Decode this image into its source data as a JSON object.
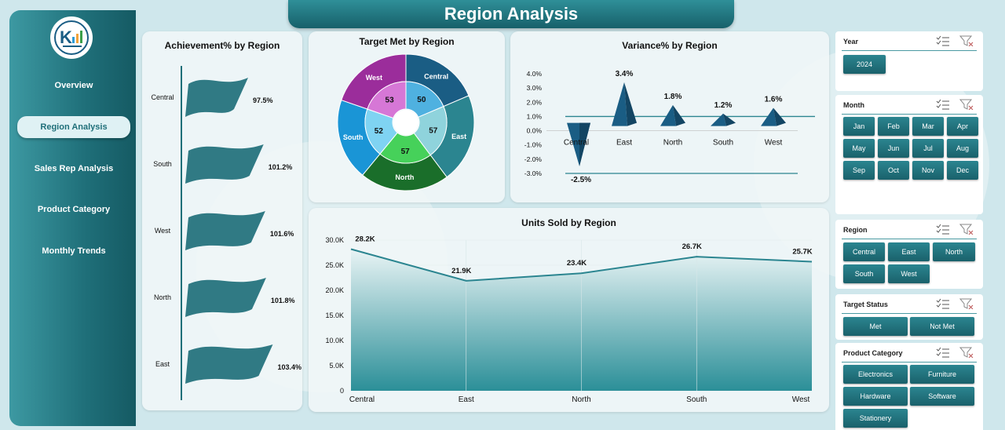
{
  "page_title": "Region Analysis",
  "colors": {
    "teal_dark": "#1f6f79",
    "teal_mid": "#2b8590",
    "purple": "#9b2d9b",
    "blue": "#1a95d6",
    "green": "#1a6e2a",
    "navy": "#1a5d84"
  },
  "sidebar": {
    "logo_icon": "company-logo-icon",
    "items": [
      {
        "label": "Overview"
      },
      {
        "label": "Region Analysis"
      },
      {
        "label": "Sales Rep Analysis"
      },
      {
        "label": "Product Category"
      },
      {
        "label": "Monthly Trends"
      }
    ]
  },
  "achievement": {
    "title": "Achievement% by Region",
    "chart_data": {
      "type": "bar",
      "title": "Achievement% by Region",
      "categories": [
        "Central",
        "South",
        "West",
        "North",
        "East"
      ],
      "values": [
        97.5,
        101.2,
        101.6,
        101.8,
        103.4
      ],
      "labels": [
        "97.5%",
        "101.2%",
        "101.6%",
        "101.8%",
        "103.4%"
      ]
    }
  },
  "target_met": {
    "title": "Target Met by Region",
    "chart_data": {
      "type": "pie",
      "title": "Target Met by Region",
      "categories": [
        "Central",
        "East",
        "North",
        "South",
        "West"
      ],
      "values": [
        50,
        57,
        57,
        52,
        53
      ],
      "labels": [
        "50",
        "57",
        "57",
        "52",
        "53"
      ]
    }
  },
  "variance": {
    "title": "Variance% by Region",
    "chart_data": {
      "type": "bar",
      "title": "Variance% by Region",
      "categories": [
        "Central",
        "East",
        "North",
        "South",
        "West"
      ],
      "values": [
        -2.5,
        3.4,
        1.8,
        1.2,
        1.6
      ],
      "labels": [
        "-2.5%",
        "3.4%",
        "1.8%",
        "1.2%",
        "1.6%"
      ],
      "ylim": [
        -3.0,
        4.0
      ],
      "ticks": [
        "4.0%",
        "3.0%",
        "2.0%",
        "1.0%",
        "0.0%",
        "-1.0%",
        "-2.0%",
        "-3.0%"
      ]
    }
  },
  "units": {
    "title": "Units Sold by Region",
    "chart_data": {
      "type": "area",
      "title": "Units Sold by Region",
      "categories": [
        "Central",
        "East",
        "North",
        "South",
        "West"
      ],
      "values": [
        28.2,
        21.9,
        23.4,
        26.7,
        25.7
      ],
      "labels": [
        "28.2K",
        "21.9K",
        "23.4K",
        "26.7K",
        "25.7K"
      ],
      "ylim": [
        0,
        30
      ],
      "ticks": [
        "30.0K",
        "25.0K",
        "20.0K",
        "15.0K",
        "10.0K",
        "5.0K",
        "0"
      ]
    }
  },
  "slicers": {
    "year": {
      "title": "Year",
      "options": [
        "2024"
      ]
    },
    "month": {
      "title": "Month",
      "options": [
        "Jan",
        "Feb",
        "Mar",
        "Apr",
        "May",
        "Jun",
        "Jul",
        "Aug",
        "Sep",
        "Oct",
        "Nov",
        "Dec"
      ]
    },
    "region": {
      "title": "Region",
      "options": [
        "Central",
        "East",
        "North",
        "South",
        "West"
      ]
    },
    "target_status": {
      "title": "Target Status",
      "options": [
        "Met",
        "Not Met"
      ]
    },
    "product_category": {
      "title": "Product Category",
      "options": [
        "Electronics",
        "Furniture",
        "Hardware",
        "Software",
        "Stationery"
      ]
    }
  }
}
